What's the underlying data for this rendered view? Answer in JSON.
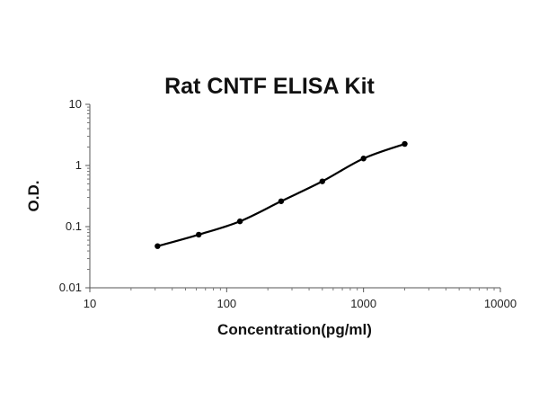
{
  "chart_data": {
    "type": "line",
    "title": "Rat CNTF ELISA Kit",
    "xlabel": "Concentration(pg/ml)",
    "ylabel": "O.D.",
    "x_scale": "log",
    "y_scale": "log",
    "xlim": [
      10,
      10000
    ],
    "ylim": [
      0.01,
      10
    ],
    "x_ticks": [
      "10",
      "100",
      "1000",
      "10000"
    ],
    "y_ticks": [
      "0.01",
      "0.1",
      "1",
      "10"
    ],
    "grid": false,
    "legend": "none",
    "series": [
      {
        "color": "#000000",
        "x": [
          31.25,
          62.5,
          125,
          250,
          500,
          1000,
          2000
        ],
        "y": [
          0.048,
          0.074,
          0.122,
          0.26,
          0.55,
          1.3,
          2.25
        ]
      }
    ]
  }
}
